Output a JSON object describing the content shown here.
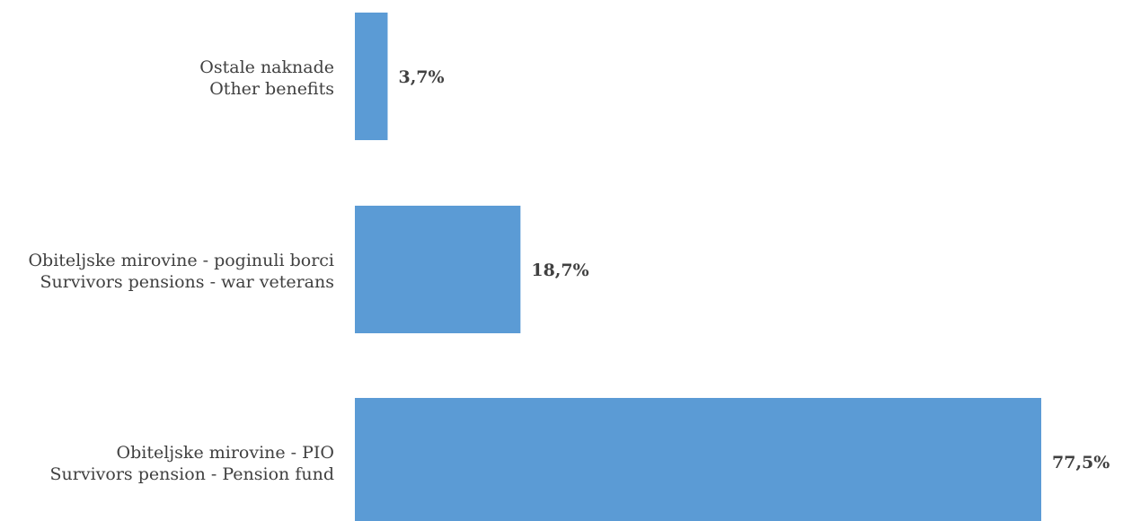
{
  "chart_data": {
    "type": "bar",
    "orientation": "horizontal",
    "categories": [
      {
        "line1": "Ostale naknade",
        "line2": "Other benefits"
      },
      {
        "line1": "Obiteljske mirovine - poginuli borci",
        "line2": "Survivors pensions - war veterans"
      },
      {
        "line1": "Obiteljske mirovine - PIO",
        "line2": "Survivors pension - Pension fund"
      }
    ],
    "values": [
      3.7,
      18.7,
      77.5
    ],
    "data_labels": [
      "3,7%",
      "18,7%",
      "77,5%"
    ],
    "xlim": [
      0,
      77.5
    ],
    "grid": false,
    "legend": "none",
    "bar_color": "#5B9BD5"
  }
}
